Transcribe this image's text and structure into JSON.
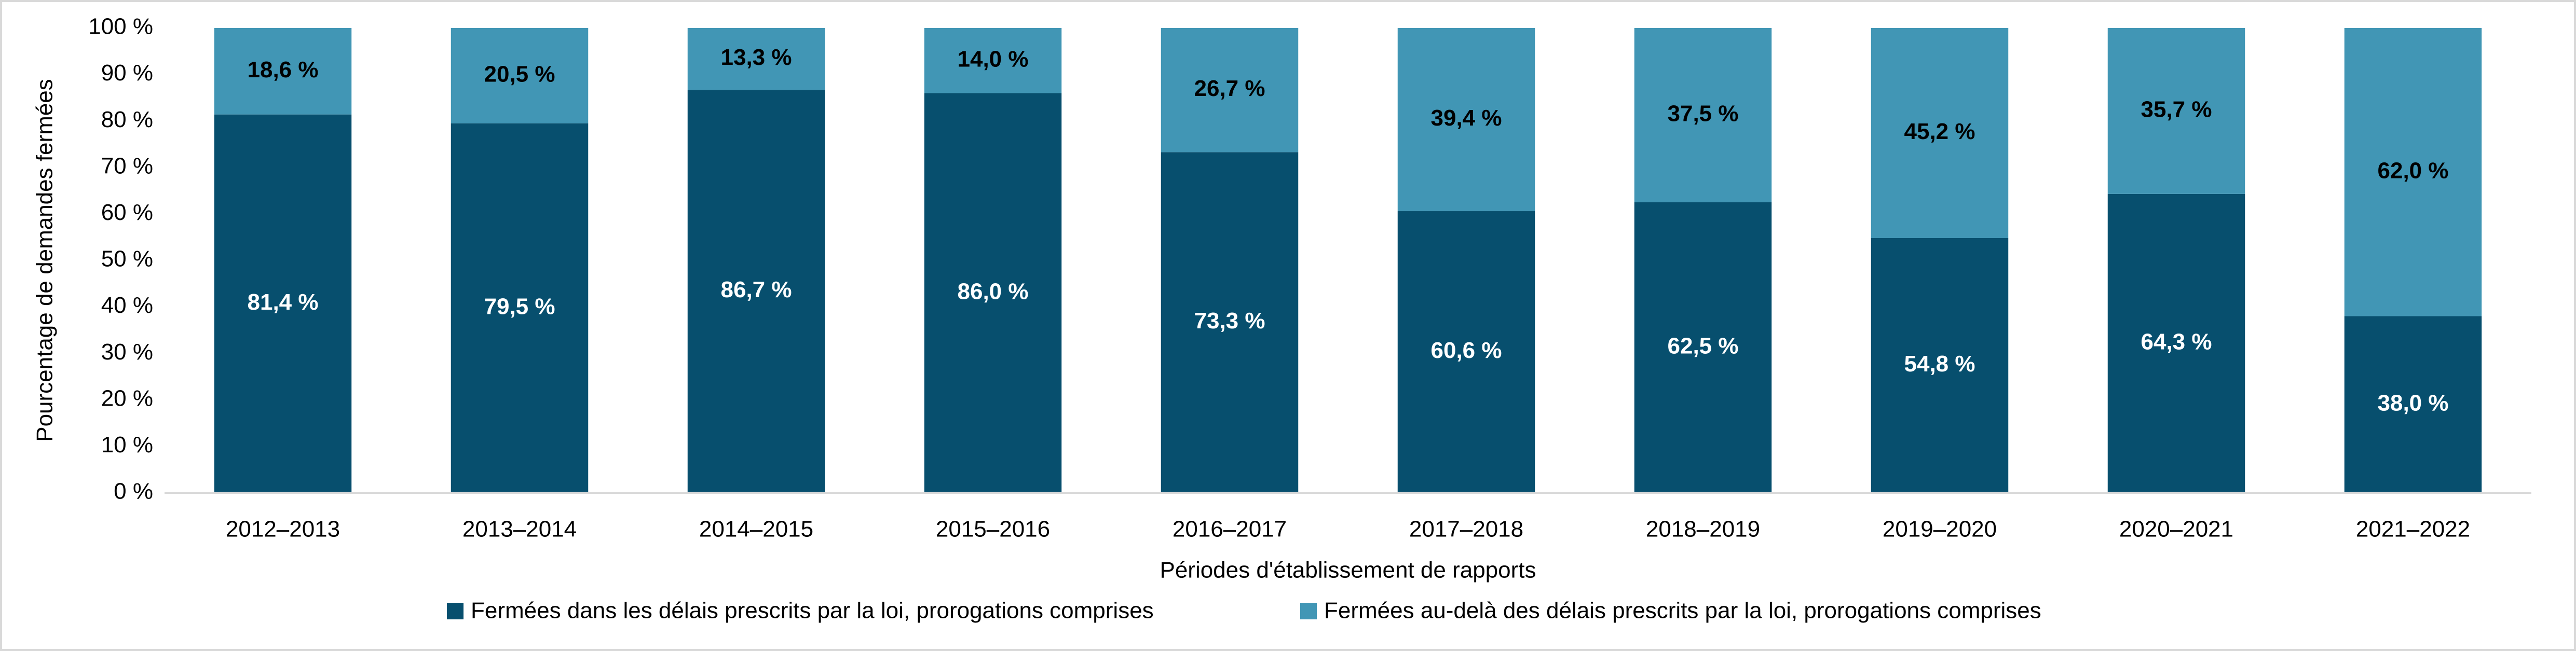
{
  "chart_data": {
    "type": "stacked_bar",
    "y_label": "Pourcentage de demandes fermées",
    "x_label": "Périodes d'établissement de rapports",
    "categories": [
      "2012–2013",
      "2013–2014",
      "2014–2015",
      "2015–2016",
      "2016–2017",
      "2017–2018",
      "2018–2019",
      "2019–2020",
      "2020–2021",
      "2021–2022"
    ],
    "series": [
      {
        "name": "Fermées dans les délais prescrits par la loi, prorogations comprises",
        "color": "#074f6e",
        "label_color": "#ffffff",
        "values": [
          81.4,
          79.5,
          86.7,
          86.0,
          73.3,
          60.6,
          62.5,
          54.8,
          64.3,
          38.0
        ],
        "value_labels": [
          "81,4 %",
          "79,5 %",
          "86,7 %",
          "86,0 %",
          "73,3 %",
          "60,6 %",
          "62,5 %",
          "54,8 %",
          "64,3 %",
          "38,0 %"
        ]
      },
      {
        "name": "Fermées au-delà des délais prescrits par la loi, prorogations comprises",
        "color": "#4196b5",
        "label_color": "#000000",
        "values": [
          18.6,
          20.5,
          13.3,
          14.0,
          26.7,
          39.4,
          37.5,
          45.2,
          35.7,
          62.0
        ],
        "value_labels": [
          "18,6 %",
          "20,5 %",
          "13,3 %",
          "14,0 %",
          "26,7 %",
          "39,4 %",
          "37,5 %",
          "45,2 %",
          "35,7 %",
          "62,0 %"
        ]
      }
    ],
    "ylim": [
      0,
      100
    ],
    "yticks": [
      {
        "value": 0,
        "label": "0 %"
      },
      {
        "value": 10,
        "label": "10 %"
      },
      {
        "value": 20,
        "label": "20 %"
      },
      {
        "value": 30,
        "label": "30 %"
      },
      {
        "value": 40,
        "label": "40 %"
      },
      {
        "value": 50,
        "label": "50 %"
      },
      {
        "value": 60,
        "label": "60 %"
      },
      {
        "value": 70,
        "label": "70 %"
      },
      {
        "value": 80,
        "label": "80 %"
      },
      {
        "value": 90,
        "label": "90 %"
      },
      {
        "value": 100,
        "label": "100 %"
      }
    ],
    "grid": false,
    "legend": "bottom"
  }
}
